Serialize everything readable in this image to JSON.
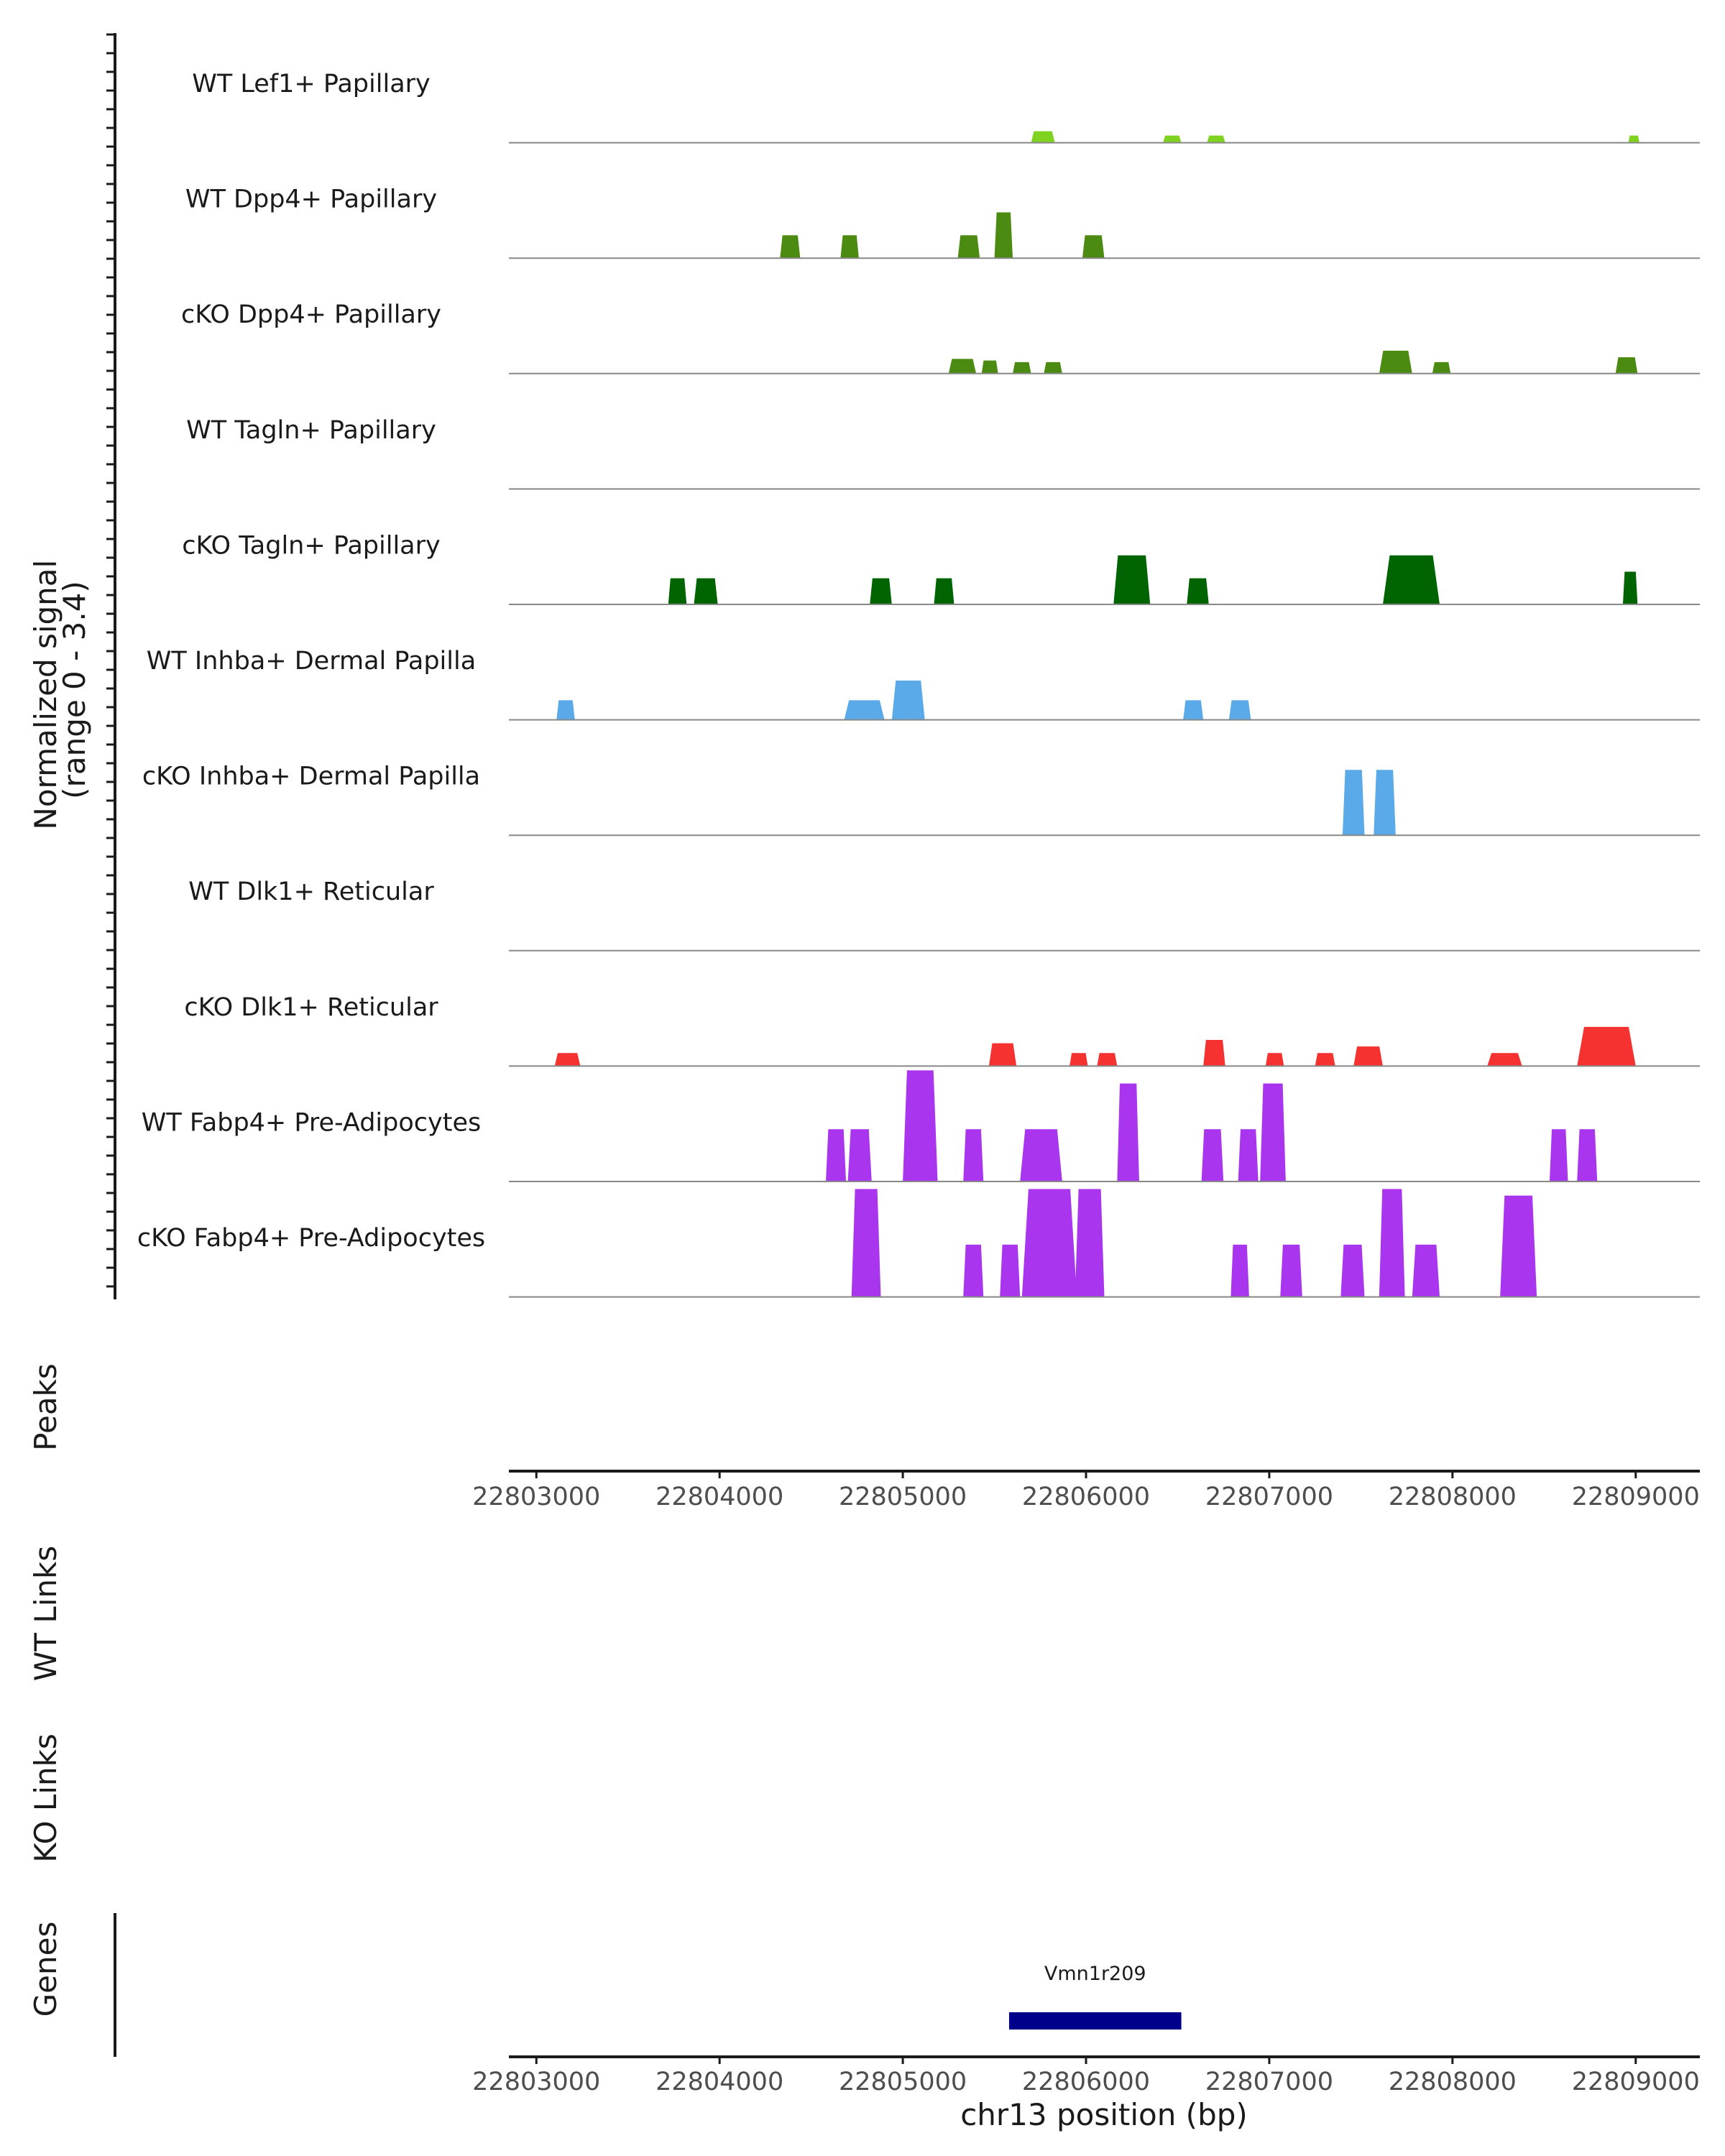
{
  "chart_data": {
    "type": "area",
    "chromosome": "chr13",
    "xlabel": "chr13 position (bp)",
    "xlim": [
      22802850,
      22809350
    ],
    "x_ticks": [
      22803000,
      22804000,
      22805000,
      22806000,
      22807000,
      22808000,
      22809000
    ],
    "x_tick_labels": [
      "22803000",
      "22804000",
      "22805000",
      "22806000",
      "22807000",
      "22808000",
      "22809000"
    ],
    "ylabel_line1": "Normalized signal",
    "ylabel_line2": "(range 0 - 3.4)",
    "ylim": [
      0,
      3.4
    ],
    "panel_labels": {
      "peaks": "Peaks",
      "wt_links": "WT Links",
      "ko_links": "KO Links",
      "genes": "Genes"
    },
    "tracks": [
      {
        "name": "WT Lef1+ Papillary",
        "color": "#7fd320",
        "peaks": [
          [
            22805700,
            22805830,
            0.35
          ],
          [
            22806420,
            22806520,
            0.22
          ],
          [
            22806660,
            22806760,
            0.22
          ],
          [
            22808960,
            22809020,
            0.22
          ]
        ]
      },
      {
        "name": "WT Dpp4+ Papillary",
        "color": "#4b8b12",
        "peaks": [
          [
            22804330,
            22804440,
            0.7
          ],
          [
            22804660,
            22804760,
            0.7
          ],
          [
            22805300,
            22805420,
            0.7
          ],
          [
            22805500,
            22805600,
            1.4
          ],
          [
            22805980,
            22806100,
            0.7
          ]
        ]
      },
      {
        "name": "cKO Dpp4+ Papillary",
        "color": "#4b8b12",
        "peaks": [
          [
            22805250,
            22805400,
            0.45
          ],
          [
            22805430,
            22805520,
            0.4
          ],
          [
            22805600,
            22805700,
            0.35
          ],
          [
            22805770,
            22805870,
            0.35
          ],
          [
            22807600,
            22807780,
            0.7
          ],
          [
            22807890,
            22807990,
            0.35
          ],
          [
            22808890,
            22809010,
            0.5
          ]
        ]
      },
      {
        "name": "WT Tagln+ Papillary",
        "color": "#006400",
        "peaks": []
      },
      {
        "name": "cKO Tagln+ Papillary",
        "color": "#006400",
        "peaks": [
          [
            22803720,
            22803820,
            0.8
          ],
          [
            22803860,
            22803990,
            0.8
          ],
          [
            22804820,
            22804940,
            0.8
          ],
          [
            22805170,
            22805280,
            0.8
          ],
          [
            22806150,
            22806350,
            1.5
          ],
          [
            22806550,
            22806670,
            0.8
          ],
          [
            22807620,
            22807930,
            1.5
          ],
          [
            22808930,
            22809010,
            1.0
          ]
        ]
      },
      {
        "name": "WT Inhba+ Dermal Papilla",
        "color": "#5aaaea",
        "peaks": [
          [
            22803110,
            22803210,
            0.6
          ],
          [
            22804680,
            22804900,
            0.6
          ],
          [
            22804940,
            22805120,
            1.2
          ],
          [
            22806530,
            22806640,
            0.6
          ],
          [
            22806780,
            22806900,
            0.6
          ]
        ]
      },
      {
        "name": "cKO Inhba+ Dermal Papilla",
        "color": "#5aaaea",
        "peaks": [
          [
            22807400,
            22807520,
            2.0
          ],
          [
            22807570,
            22807690,
            2.0
          ]
        ]
      },
      {
        "name": "WT Dlk1+ Reticular",
        "color": "#f5322f",
        "peaks": []
      },
      {
        "name": "cKO Dlk1+ Reticular",
        "color": "#f5322f",
        "peaks": [
          [
            22803100,
            22803240,
            0.4
          ],
          [
            22805470,
            22805620,
            0.7
          ],
          [
            22805910,
            22806010,
            0.4
          ],
          [
            22806060,
            22806170,
            0.4
          ],
          [
            22806640,
            22806760,
            0.8
          ],
          [
            22806980,
            22807080,
            0.4
          ],
          [
            22807250,
            22807360,
            0.4
          ],
          [
            22807460,
            22807620,
            0.6
          ],
          [
            22808190,
            22808380,
            0.4
          ],
          [
            22808680,
            22809000,
            1.2
          ]
        ]
      },
      {
        "name": "WT Fabp4+ Pre-Adipocytes",
        "color": "#a935ee",
        "peaks": [
          [
            22804580,
            22804690,
            1.6
          ],
          [
            22804700,
            22804830,
            1.6
          ],
          [
            22805000,
            22805190,
            3.4
          ],
          [
            22805330,
            22805440,
            1.6
          ],
          [
            22805640,
            22805870,
            1.6
          ],
          [
            22806170,
            22806290,
            3.0
          ],
          [
            22806630,
            22806750,
            1.6
          ],
          [
            22806830,
            22806940,
            1.6
          ],
          [
            22806950,
            22807090,
            3.0
          ],
          [
            22808530,
            22808630,
            1.6
          ],
          [
            22808680,
            22808790,
            1.6
          ]
        ]
      },
      {
        "name": "cKO Fabp4+ Pre-Adipocytes",
        "color": "#a935ee",
        "peaks": [
          [
            22804720,
            22804880,
            3.3
          ],
          [
            22805330,
            22805440,
            1.6
          ],
          [
            22805530,
            22805640,
            1.6
          ],
          [
            22805650,
            22805950,
            3.3
          ],
          [
            22805940,
            22806100,
            3.3
          ],
          [
            22806790,
            22806890,
            1.6
          ],
          [
            22807060,
            22807180,
            1.6
          ],
          [
            22807390,
            22807520,
            1.6
          ],
          [
            22807600,
            22807740,
            3.3
          ],
          [
            22807780,
            22807930,
            1.6
          ],
          [
            22808260,
            22808460,
            3.1
          ]
        ]
      }
    ],
    "genes": [
      {
        "name": "Vmn1r209",
        "start": 22805580,
        "end": 22806520,
        "color": "#00008b"
      }
    ]
  }
}
